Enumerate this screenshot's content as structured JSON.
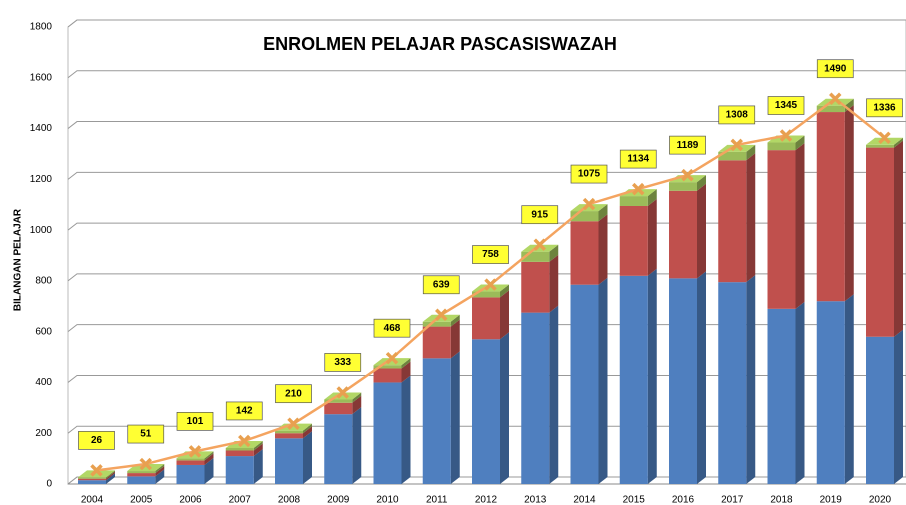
{
  "chart_data": {
    "type": "bar",
    "stacked": true,
    "title": "ENROLMEN PELAJAR PASCASISWAZAH",
    "ylabel": "BILANGAN PELAJAR",
    "categories": [
      "2004",
      "2005",
      "2006",
      "2007",
      "2008",
      "2009",
      "2010",
      "2011",
      "2012",
      "2013",
      "2014",
      "2015",
      "2016",
      "2017",
      "2018",
      "2019",
      "2020"
    ],
    "series": [
      {
        "color": "#4f7fbf",
        "values": [
          15,
          30,
          75,
          110,
          180,
          275,
          400,
          495,
          570,
          675,
          785,
          820,
          810,
          795,
          690,
          720,
          580
        ]
      },
      {
        "color": "#c0504d",
        "values": [
          6,
          13,
          18,
          22,
          20,
          45,
          55,
          125,
          165,
          200,
          250,
          275,
          345,
          480,
          625,
          745,
          745
        ]
      },
      {
        "color": "#9bbb59",
        "values": [
          5,
          8,
          8,
          10,
          10,
          13,
          13,
          19,
          23,
          40,
          40,
          39,
          34,
          33,
          30,
          25,
          11
        ]
      }
    ],
    "line": {
      "color": "#f4a460",
      "values": [
        26,
        51,
        101,
        142,
        210,
        333,
        468,
        639,
        758,
        915,
        1075,
        1134,
        1189,
        1308,
        1345,
        1490,
        1336
      ]
    },
    "ylim": [
      0,
      1800
    ],
    "yticks": [
      0,
      200,
      400,
      600,
      800,
      1000,
      1200,
      1400,
      1600,
      1800
    ],
    "grid": true
  }
}
